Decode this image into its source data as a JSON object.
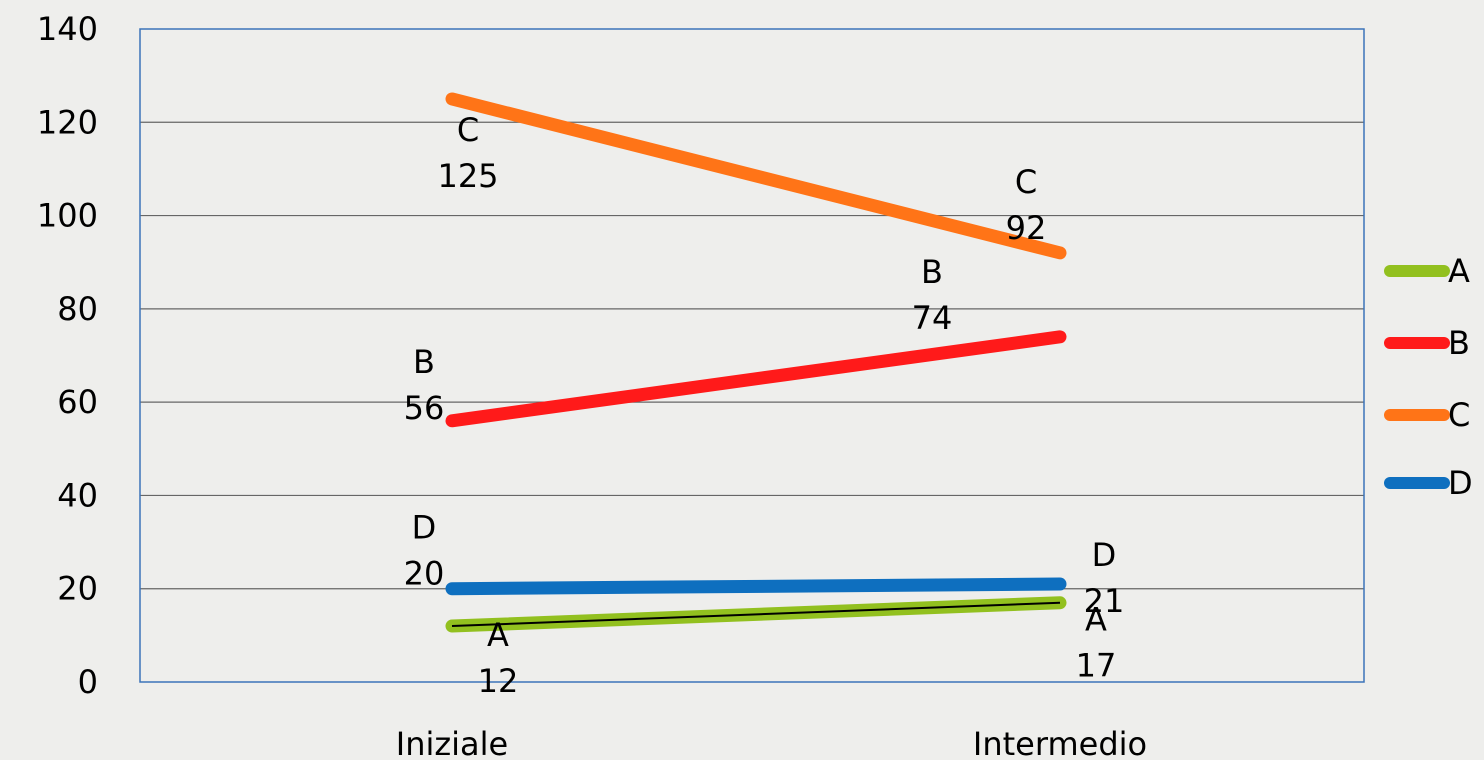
{
  "chart_data": {
    "type": "line",
    "categories": [
      "Iniziale",
      "Intermedio"
    ],
    "series": [
      {
        "name": "A",
        "values": [
          12,
          17
        ],
        "color": "#92c01f",
        "outline": "#000000"
      },
      {
        "name": "B",
        "values": [
          56,
          74
        ],
        "color": "#ff1a1a"
      },
      {
        "name": "C",
        "values": [
          125,
          92
        ],
        "color": "#ff7417"
      },
      {
        "name": "D",
        "values": [
          20,
          21
        ],
        "color": "#0e6fbf"
      }
    ],
    "ylim": [
      0,
      140
    ],
    "yticks": [
      0,
      20,
      40,
      60,
      80,
      100,
      120,
      140
    ],
    "grid": true,
    "legend": "right",
    "data_labels": true,
    "plot_border_color": "#3b73b9",
    "gridline_color": "#666666",
    "background": "#eeeeec"
  }
}
